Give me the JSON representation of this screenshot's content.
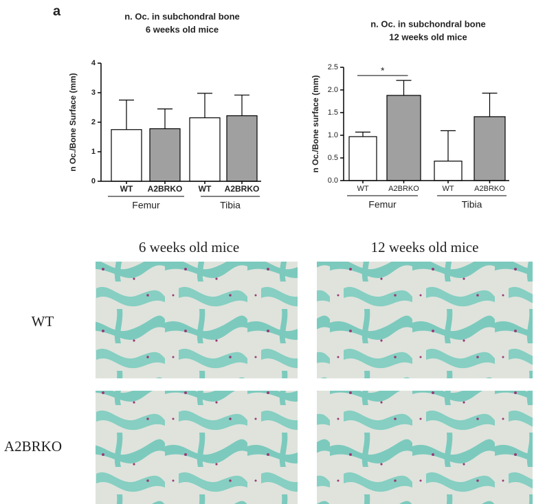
{
  "panel_label": "a",
  "chart_data": [
    {
      "type": "bar",
      "title": "n. Oc. in subchondral bone",
      "subtitle": "6 weeks old mice",
      "y_label": "n Oc./Bone Surface (mm)",
      "categories": [
        "WT",
        "A2BRKO",
        "WT",
        "A2BRKO"
      ],
      "groups": [
        "Femur",
        "Tibia"
      ],
      "values": [
        1.75,
        1.78,
        2.15,
        2.22
      ],
      "errors": [
        1.0,
        0.67,
        0.83,
        0.7
      ],
      "colors": [
        "#ffffff",
        "#a0a0a0",
        "#ffffff",
        "#a0a0a0"
      ],
      "ylim": [
        0,
        4
      ],
      "yticks": [
        0,
        1,
        2,
        3,
        4
      ]
    },
    {
      "type": "bar",
      "title": "n. Oc. in subchondral bone",
      "subtitle": "12 weeks old mice",
      "y_label": "n Oc./Bone surface (mm)",
      "categories": [
        "WT",
        "A2BRKO",
        "WT",
        "A2BRKO"
      ],
      "groups": [
        "Femur",
        "Tibia"
      ],
      "values": [
        0.97,
        1.88,
        0.43,
        1.41
      ],
      "errors": [
        0.1,
        0.33,
        0.67,
        0.52
      ],
      "colors": [
        "#ffffff",
        "#a0a0a0",
        "#ffffff",
        "#a0a0a0"
      ],
      "ylim": [
        0,
        2.5
      ],
      "yticks": [
        {
          "value": 0,
          "label": "0.0"
        },
        0.5,
        {
          "value": 1,
          "label": "1.0"
        },
        1.5,
        {
          "value": 2,
          "label": "2.0"
        },
        2.5
      ],
      "annotation": "*"
    }
  ],
  "images": {
    "columns": [
      "6 weeks old mice",
      "12 weeks old mice"
    ],
    "rows": [
      "WT",
      "A2BRKO"
    ]
  }
}
